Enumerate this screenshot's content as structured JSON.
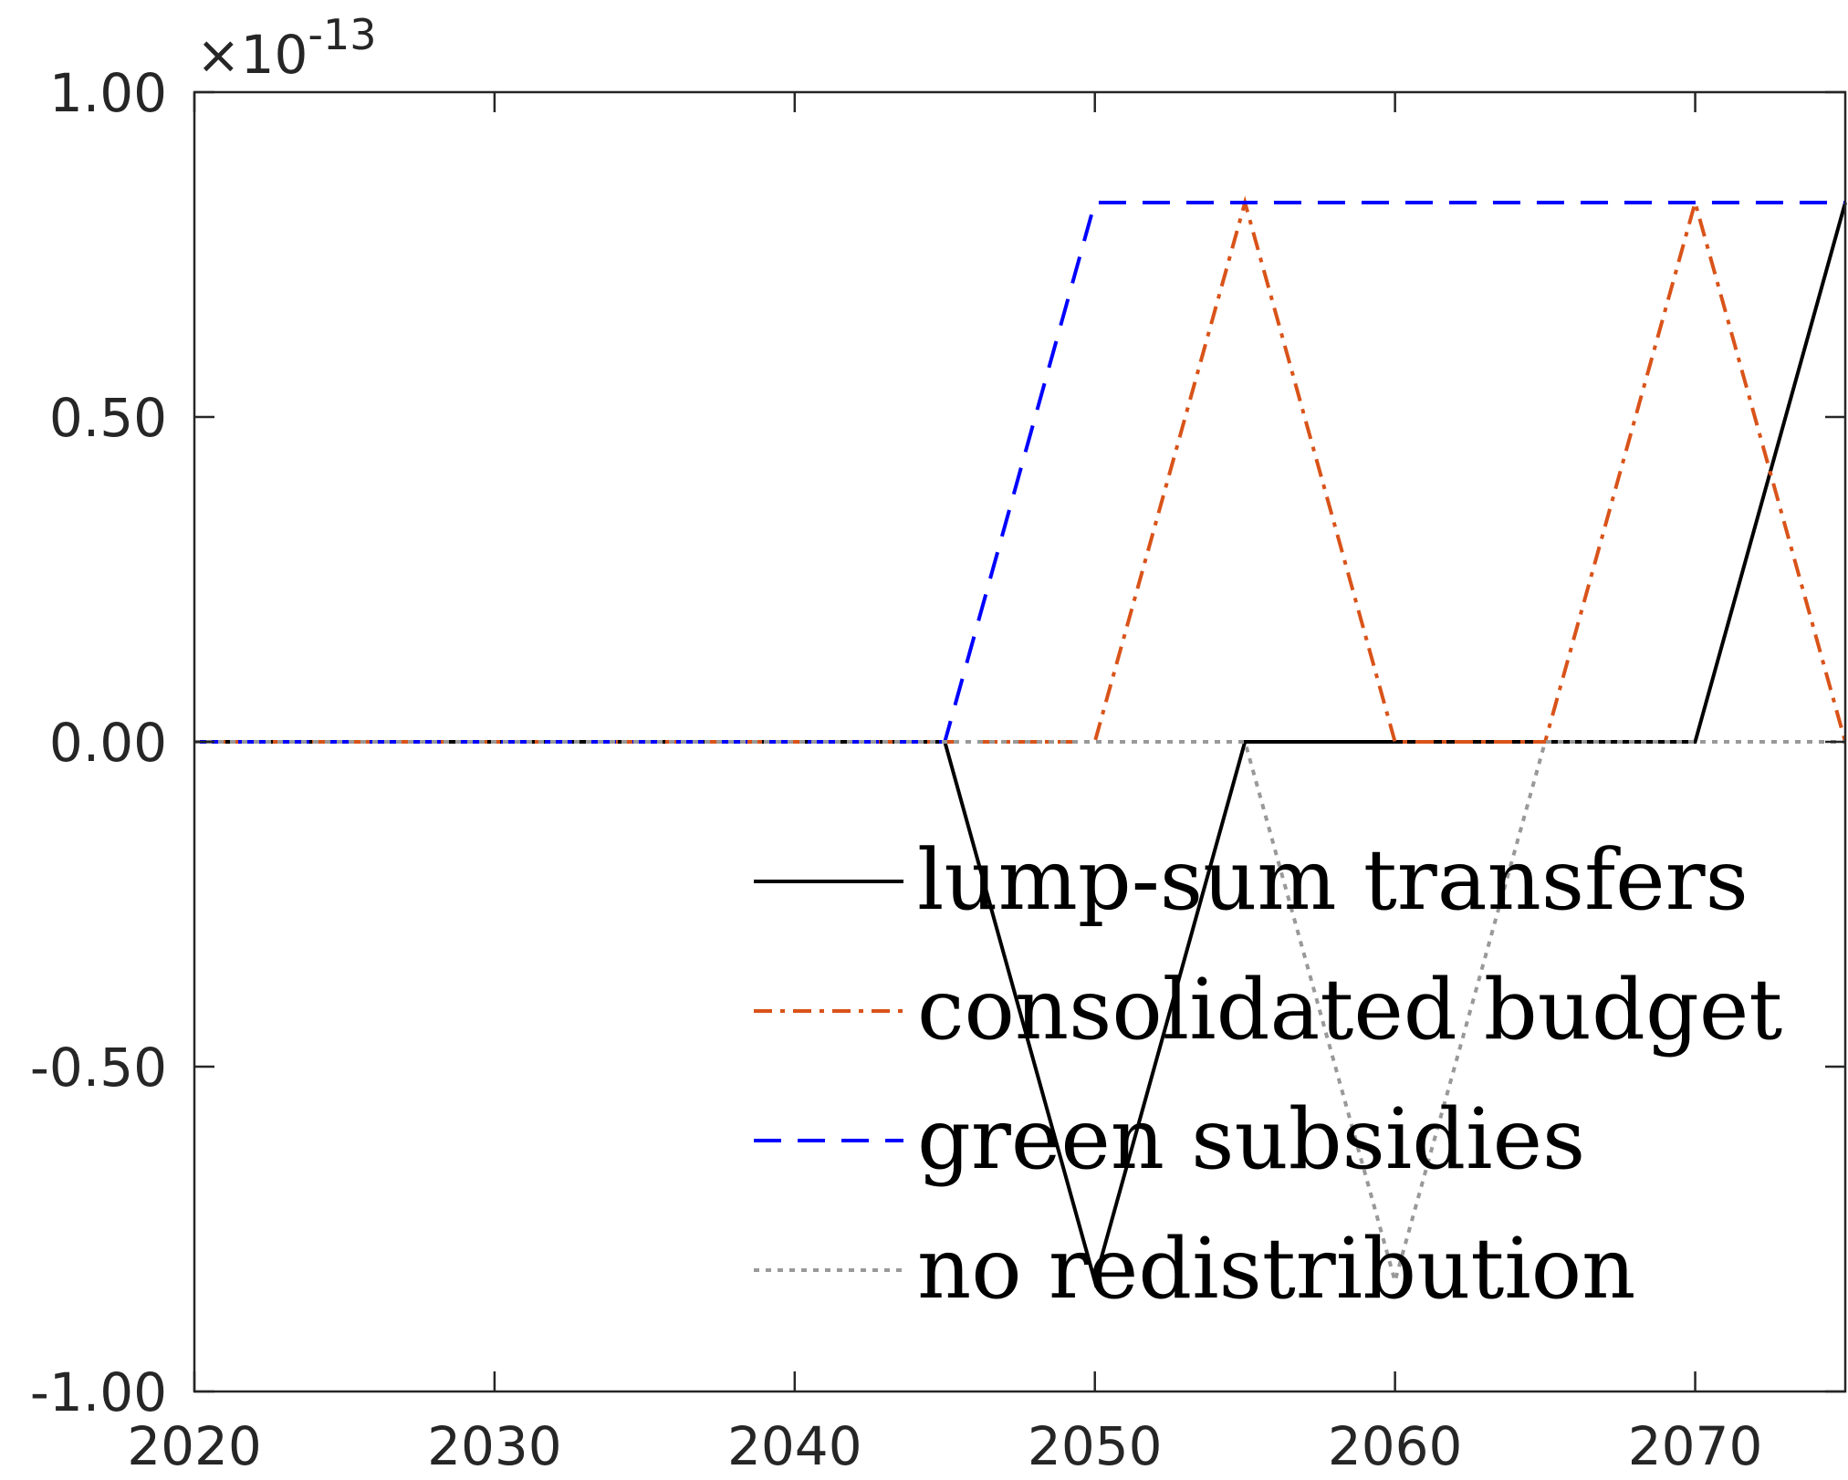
{
  "chart_data": {
    "type": "line",
    "title": "",
    "xlabel": "",
    "ylabel": "",
    "xlim": [
      2020,
      2075
    ],
    "ylim": [
      -1.0,
      1.0
    ],
    "y_exponent": "×10^-13",
    "y_exponent_base": "×10",
    "y_exponent_power": "-13",
    "xticks": [
      2020,
      2030,
      2040,
      2050,
      2060,
      2070
    ],
    "xtick_labels": [
      "2020",
      "2030",
      "2040",
      "2050",
      "2060",
      "2070"
    ],
    "yticks": [
      -1.0,
      -0.5,
      0.0,
      0.5,
      1.0
    ],
    "ytick_labels": [
      "-1.00",
      "-0.50",
      "0.00",
      "0.50",
      "1.00"
    ],
    "x": [
      2020,
      2025,
      2030,
      2035,
      2040,
      2045,
      2050,
      2055,
      2060,
      2065,
      2070,
      2075
    ],
    "grid": false,
    "legend_position": "bottom-right",
    "series": [
      {
        "name": "lump-sum transfers",
        "color": "#000000",
        "dash": "solid",
        "values": [
          0,
          0,
          0,
          0,
          0,
          0,
          -0.83,
          0,
          0,
          0,
          0,
          0.83
        ]
      },
      {
        "name": "consolidated budget",
        "color": "#D95319",
        "dash": "dashdot",
        "values": [
          0,
          0,
          0,
          0,
          0,
          0,
          0,
          0.83,
          0,
          0,
          0.83,
          0
        ]
      },
      {
        "name": "green subsidies",
        "color": "#0000FF",
        "dash": "dashed",
        "values": [
          0,
          0,
          0,
          0,
          0,
          0,
          0.83,
          0.83,
          0.83,
          0.83,
          0.83,
          0.83
        ]
      },
      {
        "name": "no redistribution",
        "color": "#999999",
        "dash": "dotted",
        "values": [
          0,
          0,
          0,
          0,
          0,
          0,
          0,
          0,
          -0.83,
          0,
          0,
          0
        ]
      }
    ]
  }
}
